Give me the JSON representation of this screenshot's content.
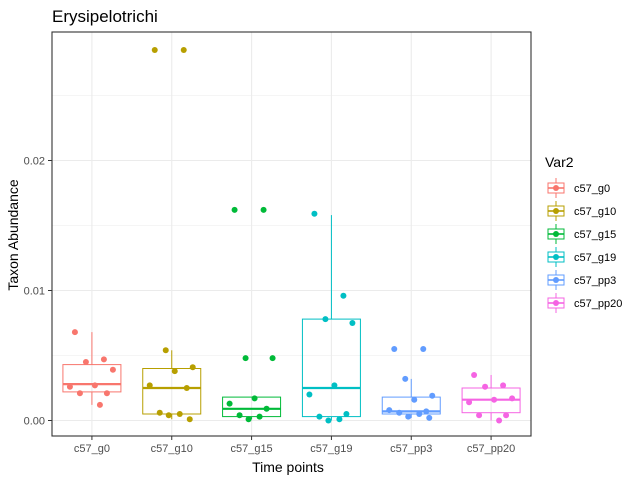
{
  "chart_data": {
    "type": "box",
    "title": "Erysipelotrichi",
    "xlabel": "Time points",
    "ylabel": "Taxon Abundance",
    "ylim": [
      -0.001,
      0.0295
    ],
    "y_ticks": [
      0.0,
      0.01,
      0.02
    ],
    "y_tick_labels": [
      "0.00",
      "0.01",
      "0.02"
    ],
    "grid": true,
    "legend": {
      "title": "Var2",
      "position": "right"
    },
    "categories": [
      "c57_g0",
      "c57_g10",
      "c57_g15",
      "c57_g19",
      "c57_pp3",
      "c57_pp20"
    ],
    "series": [
      {
        "name": "c57_g0",
        "color": "#F8766D",
        "box": {
          "lower_whisker": 0.0012,
          "q1": 0.0022,
          "median": 0.0028,
          "q3": 0.0043,
          "upper_whisker": 0.0068
        },
        "points": [
          0.0068,
          0.0047,
          0.0045,
          0.0039,
          0.0027,
          0.0026,
          0.0021,
          0.0021,
          0.0012
        ]
      },
      {
        "name": "c57_g10",
        "color": "#B79F00",
        "box": {
          "lower_whisker": 0.0001,
          "q1": 0.0005,
          "median": 0.0025,
          "q3": 0.004,
          "upper_whisker": 0.0054
        },
        "points": [
          0.0285,
          0.0285,
          0.0054,
          0.0041,
          0.0038,
          0.0027,
          0.0025,
          0.0006,
          0.0005,
          0.0004,
          0.0001
        ]
      },
      {
        "name": "c57_g15",
        "color": "#00BA38",
        "box": {
          "lower_whisker": 0.0001,
          "q1": 0.0003,
          "median": 0.0009,
          "q3": 0.0018,
          "upper_whisker": 0.0018
        },
        "points": [
          0.0162,
          0.0162,
          0.0048,
          0.0048,
          0.0017,
          0.0013,
          0.0009,
          0.0004,
          0.0003,
          0.0001
        ]
      },
      {
        "name": "c57_g19",
        "color": "#00BFC4",
        "box": {
          "lower_whisker": 0.0,
          "q1": 0.0003,
          "median": 0.0025,
          "q3": 0.0078,
          "upper_whisker": 0.0158
        },
        "points": [
          0.0159,
          0.0096,
          0.0078,
          0.0075,
          0.0027,
          0.002,
          0.0005,
          0.0003,
          0.0001,
          0.0
        ]
      },
      {
        "name": "c57_pp3",
        "color": "#619CFF",
        "box": {
          "lower_whisker": 0.0002,
          "q1": 0.0005,
          "median": 0.0007,
          "q3": 0.0018,
          "upper_whisker": 0.0032
        },
        "points": [
          0.0055,
          0.0055,
          0.0032,
          0.0019,
          0.0016,
          0.0008,
          0.0007,
          0.0006,
          0.0005,
          0.0003,
          0.0002
        ]
      },
      {
        "name": "c57_pp20",
        "color": "#F564E3",
        "box": {
          "lower_whisker": 0.0,
          "q1": 0.0006,
          "median": 0.0016,
          "q3": 0.0025,
          "upper_whisker": 0.0035
        },
        "points": [
          0.0035,
          0.0027,
          0.0026,
          0.0017,
          0.0016,
          0.0014,
          0.0004,
          0.0004,
          0.0
        ]
      }
    ]
  },
  "colors": {
    "panel_background": "#ffffff",
    "grid": "#ebebeb",
    "panel_border": "#333333"
  }
}
